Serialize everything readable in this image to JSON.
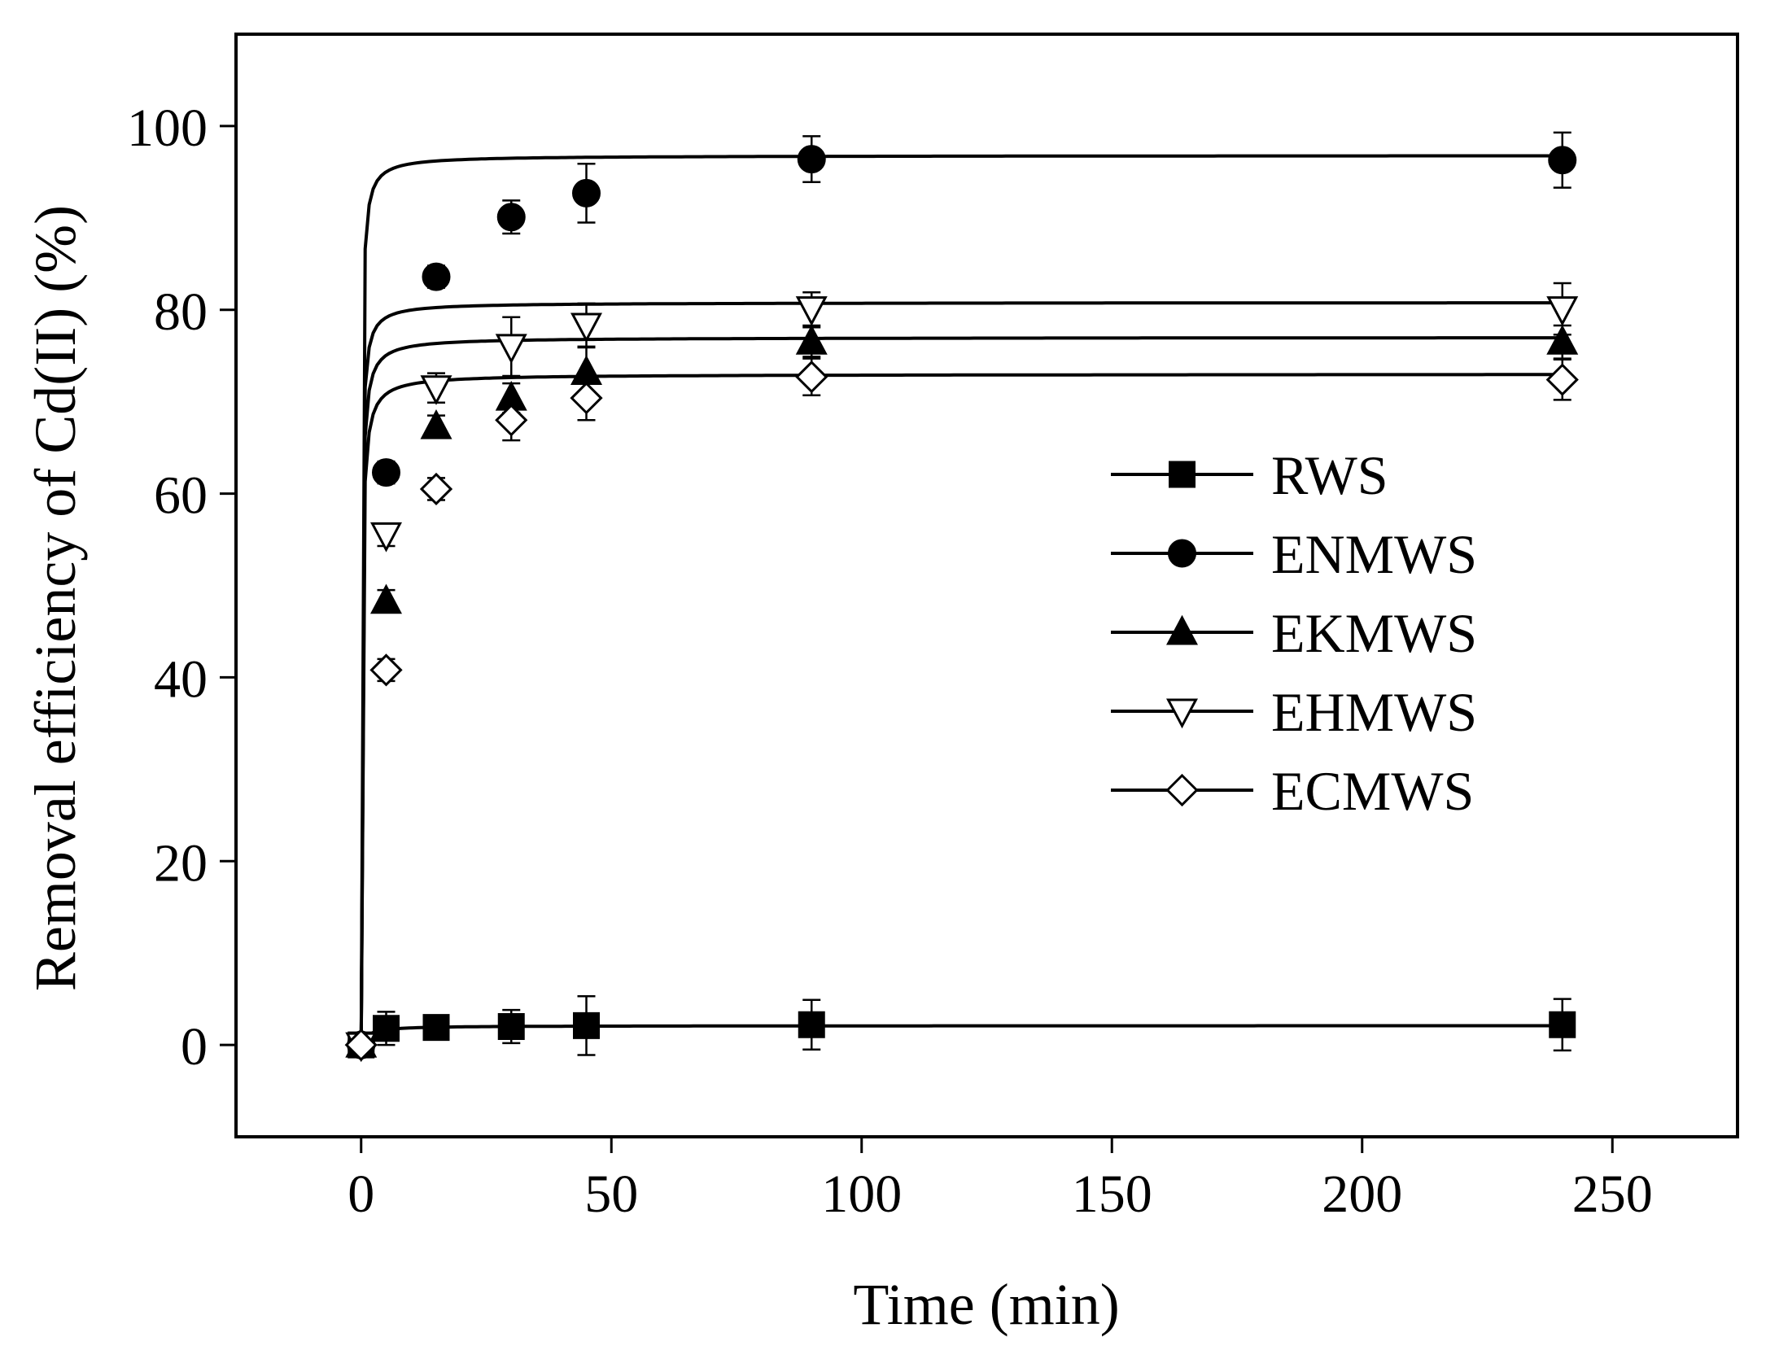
{
  "chart_data": {
    "type": "scatter",
    "title": "",
    "xlabel": "Time (min)",
    "ylabel": "Removal efficiency of Cd(II) (%)",
    "xlim": [
      -25,
      275
    ],
    "ylim": [
      -10,
      110
    ],
    "xticks": [
      0,
      50,
      100,
      150,
      200,
      250
    ],
    "yticks": [
      0,
      20,
      40,
      60,
      80,
      100
    ],
    "x": [
      0,
      5,
      15,
      30,
      45,
      90,
      240
    ],
    "legend_position": "right-middle",
    "series": [
      {
        "name": "RWS",
        "marker": "square-filled",
        "values": [
          0,
          1.8,
          1.9,
          2.0,
          2.1,
          2.2,
          2.2
        ],
        "errors": [
          0,
          1.8,
          1.3,
          1.8,
          3.2,
          2.7,
          2.8
        ],
        "fit": {
          "qe": 2.1,
          "k": 0.35
        }
      },
      {
        "name": "ENMWS",
        "marker": "circle-filled",
        "values": [
          0,
          62.3,
          83.6,
          90.1,
          92.7,
          96.4,
          96.3
        ],
        "errors": [
          0,
          1.2,
          1.2,
          1.8,
          3.2,
          2.5,
          3.0
        ],
        "fit": {
          "qe": 96.8,
          "k": 0.11
        }
      },
      {
        "name": "EKMWS",
        "marker": "triangle-up-filled",
        "values": [
          0,
          48.3,
          67.3,
          70.4,
          73.2,
          76.5,
          76.5
        ],
        "errors": [
          0,
          1.2,
          1.2,
          1.6,
          2.8,
          1.6,
          1.8
        ],
        "fit": {
          "qe": 77.0,
          "k": 0.1
        }
      },
      {
        "name": "EHMWS",
        "marker": "triangle-down-open",
        "values": [
          0,
          55.5,
          71.5,
          76.0,
          78.3,
          80.1,
          80.1
        ],
        "errors": [
          0,
          1.2,
          1.6,
          3.2,
          2.4,
          1.8,
          2.8
        ],
        "fit": {
          "qe": 80.8,
          "k": 0.12
        }
      },
      {
        "name": "ECMWS",
        "marker": "diamond-open",
        "values": [
          0,
          40.8,
          60.5,
          68.0,
          70.4,
          72.7,
          72.4
        ],
        "errors": [
          0,
          1.2,
          1.2,
          2.2,
          2.4,
          2.0,
          2.2
        ],
        "fit": {
          "qe": 73.0,
          "k": 0.09
        }
      }
    ]
  }
}
